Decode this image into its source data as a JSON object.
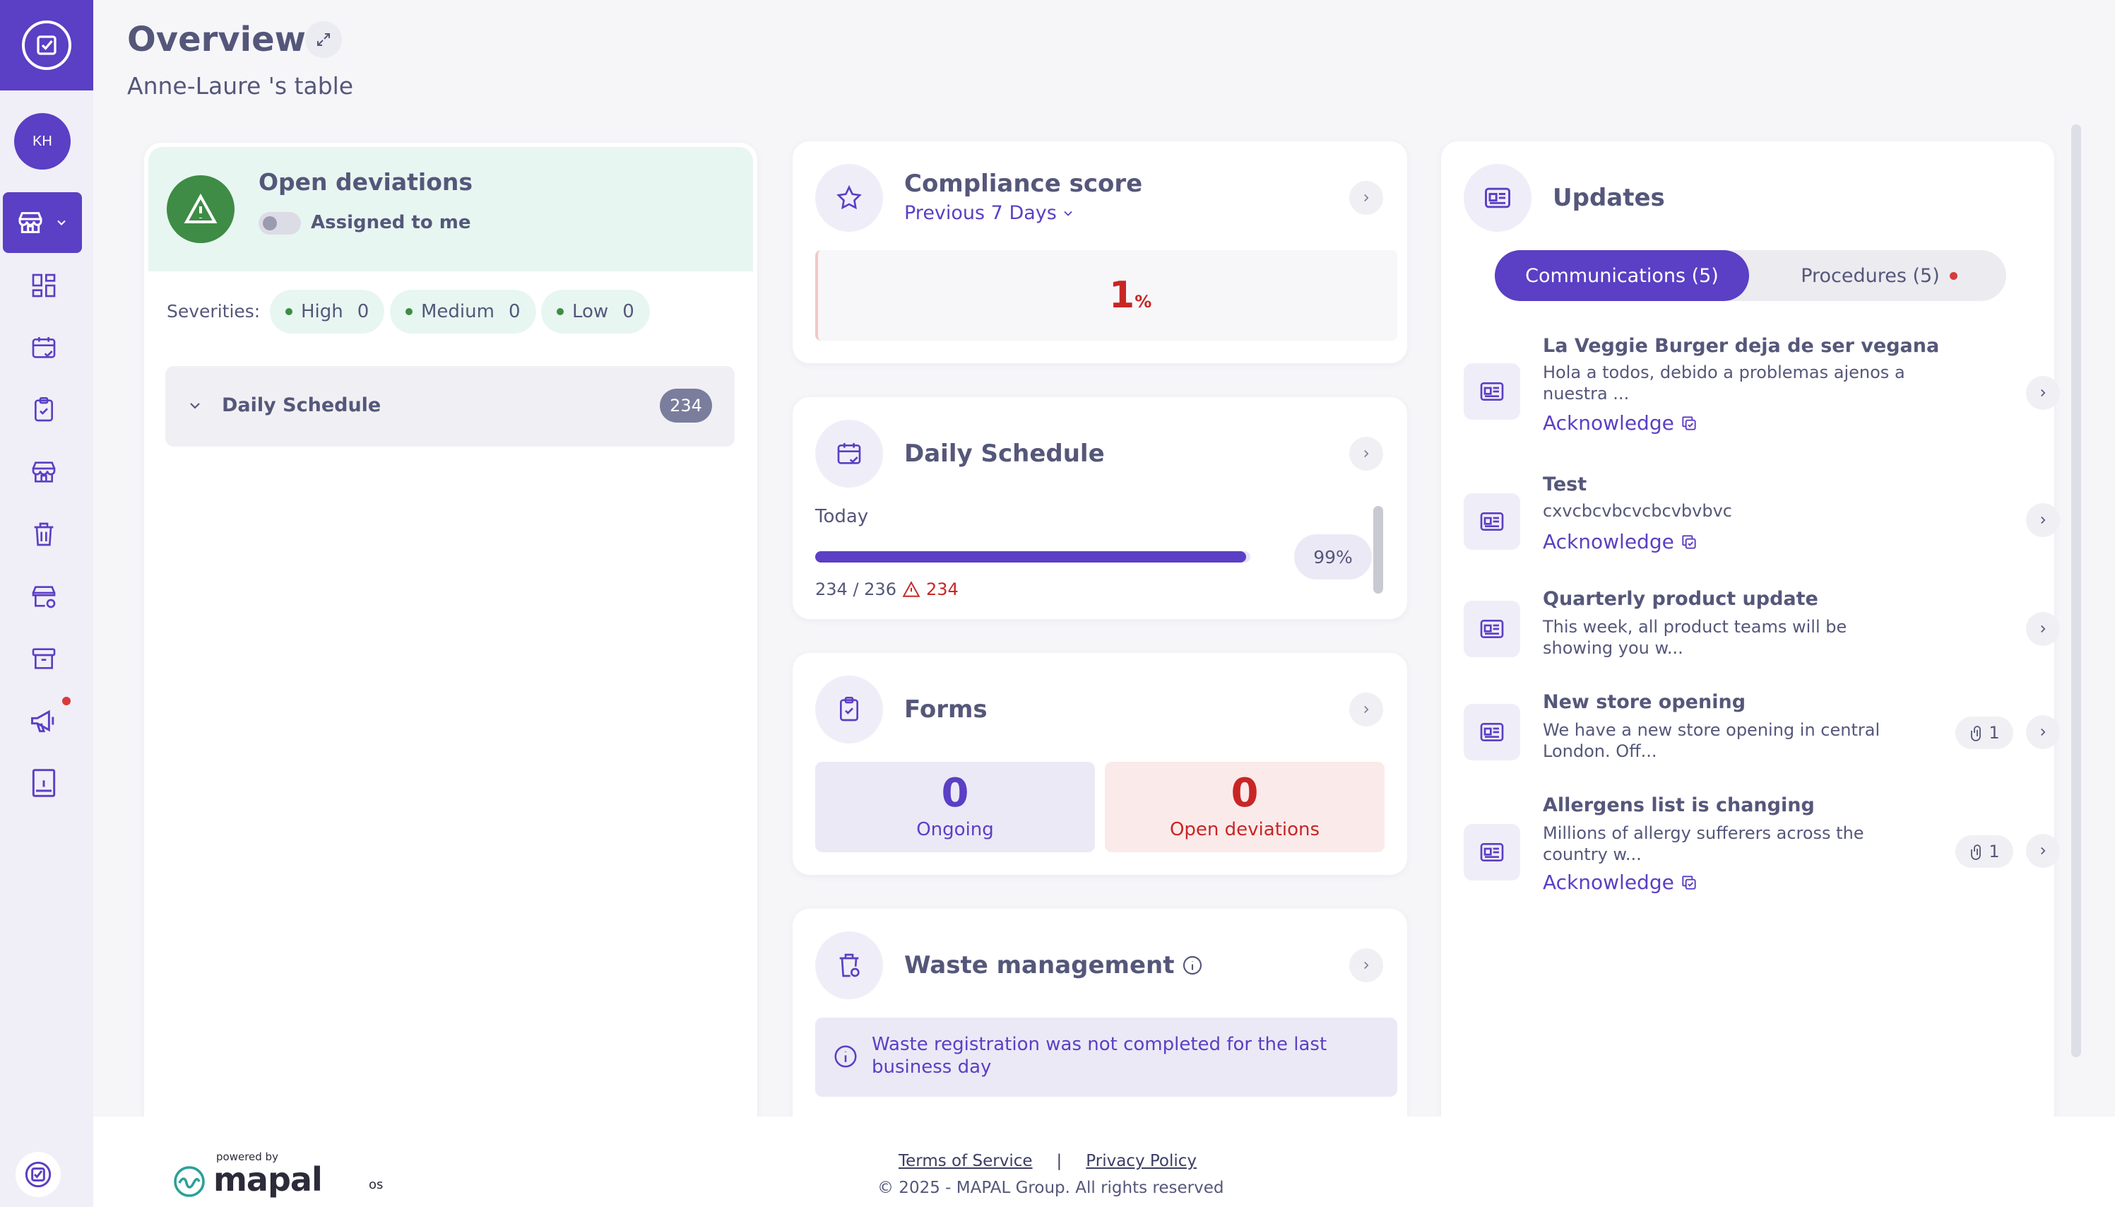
{
  "header": {
    "title": "Overview",
    "subtitle": "Anne-Laure 's table"
  },
  "sidebar": {
    "avatar_initials": "KH",
    "icons": [
      "dashboard-icon",
      "calendar-check-icon",
      "clipboard-icon",
      "store-icon",
      "trash-icon",
      "store-settings-icon",
      "archive-icon",
      "megaphone-icon",
      "info-book-icon"
    ]
  },
  "deviations": {
    "title": "Open deviations",
    "toggle_label": "Assigned to me",
    "severities_label": "Severities:",
    "chips": [
      {
        "label": "High",
        "count": "0"
      },
      {
        "label": "Medium",
        "count": "0"
      },
      {
        "label": "Low",
        "count": "0"
      }
    ],
    "schedule": {
      "label": "Daily Schedule",
      "count": "234"
    }
  },
  "compliance": {
    "title": "Compliance score",
    "period": "Previous 7 Days",
    "score": "1",
    "unit": "%"
  },
  "daily_schedule": {
    "title": "Daily Schedule",
    "day": "Today",
    "progress_fraction": 0.99,
    "percent_label": "99%",
    "done": "234 / 236",
    "warnings": "234"
  },
  "forms": {
    "title": "Forms",
    "ongoing_value": "0",
    "ongoing_label": "Ongoing",
    "deviations_value": "0",
    "deviations_label": "Open deviations"
  },
  "waste": {
    "title": "Waste management",
    "message": "Waste registration was not completed for the last business day"
  },
  "updates": {
    "title": "Updates",
    "tab_active": "Communications (5)",
    "tab_inactive": "Procedures (5)",
    "ack_label": "Acknowledge",
    "items": [
      {
        "title": "La Veggie Burger deja de ser vegana",
        "body": "Hola a todos, debido a problemas ajenos a nuestra ...",
        "attachments": ""
      },
      {
        "title": "Test",
        "body": "cxvcbcvbcvcbcvbvbvc",
        "attachments": ""
      },
      {
        "title": "Quarterly product update",
        "body": "This week, all product teams will be showing you w...",
        "attachments": ""
      },
      {
        "title": "New store opening",
        "body": "We have a new store opening in central London. Off...",
        "attachments": "1"
      },
      {
        "title": "Allergens list is changing",
        "body": "Millions of allergy sufferers across the country w...",
        "attachments": "1"
      }
    ]
  },
  "footer": {
    "powered_by": "powered by",
    "brand": "mapal",
    "brand_suffix": "os",
    "terms": "Terms of Service",
    "separator": "|",
    "privacy": "Privacy Policy",
    "copyright": "© 2025 - MAPAL Group. All rights reserved"
  },
  "colors": {
    "accent": "#5b3fc4",
    "success": "#3e8c45",
    "danger": "#c82626"
  }
}
